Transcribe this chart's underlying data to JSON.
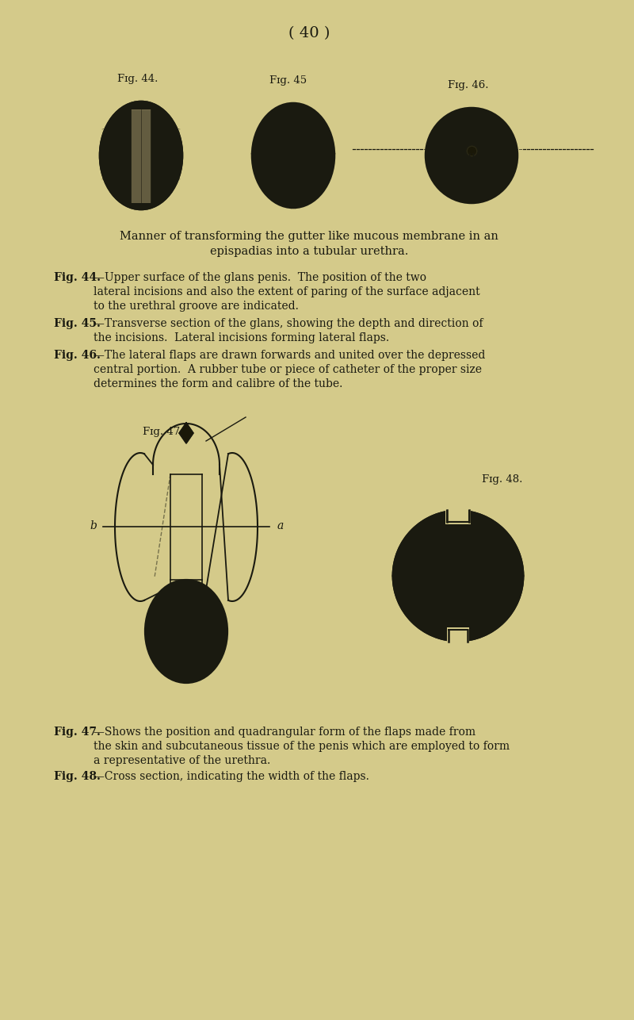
{
  "background_color": "#d4ca8a",
  "page_title": "( 40 )",
  "ink_color": "#1a1a10",
  "fig44_label": "Fig. 44.",
  "fig45_label": "Fig. 45",
  "fig46_label": "Fig. 46.",
  "fig47_label": "Fig. 47.",
  "fig48_label": "Fig. 48."
}
